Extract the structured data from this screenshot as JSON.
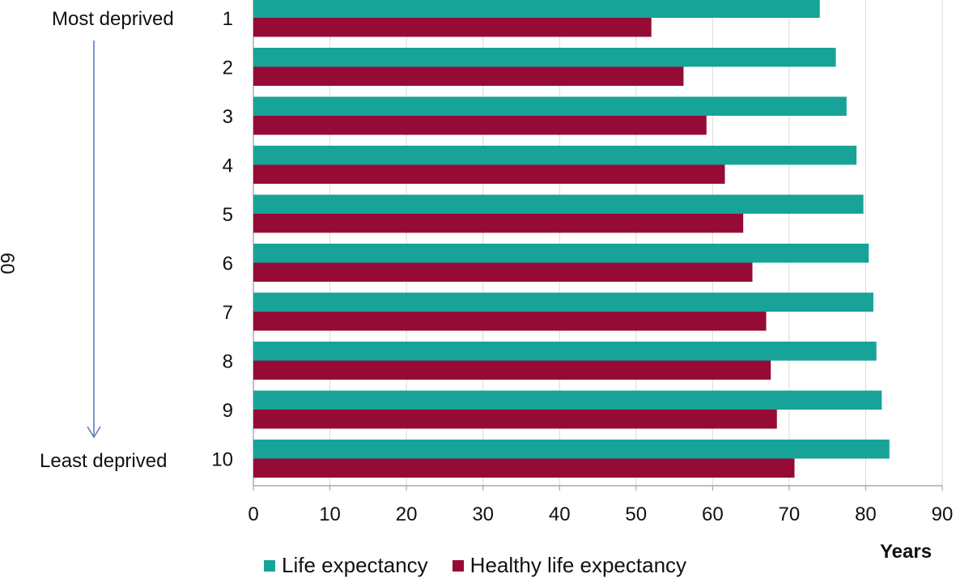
{
  "chart_data": {
    "type": "bar",
    "orientation": "horizontal",
    "categories": [
      "1",
      "2",
      "3",
      "4",
      "5",
      "6",
      "7",
      "8",
      "9",
      "10"
    ],
    "series": [
      {
        "name": "Life expectancy",
        "color": "#17a398",
        "values": [
          74.0,
          76.1,
          77.5,
          78.8,
          79.7,
          80.4,
          81.0,
          81.4,
          82.1,
          83.1
        ]
      },
      {
        "name": "Healthy life expectancy",
        "color": "#960b35",
        "values": [
          52.0,
          56.2,
          59.2,
          61.6,
          64.0,
          65.2,
          67.0,
          67.6,
          68.4,
          70.7
        ]
      }
    ],
    "xlim": [
      0,
      90
    ],
    "xticks": [
      0,
      10,
      20,
      30,
      40,
      50,
      60,
      70,
      80,
      90
    ],
    "xlabel": "Years",
    "grid": true,
    "legend_position": "bottom"
  },
  "side_labels": {
    "top": "Most deprived",
    "bottom": "Least deprived",
    "rotated": "60"
  }
}
